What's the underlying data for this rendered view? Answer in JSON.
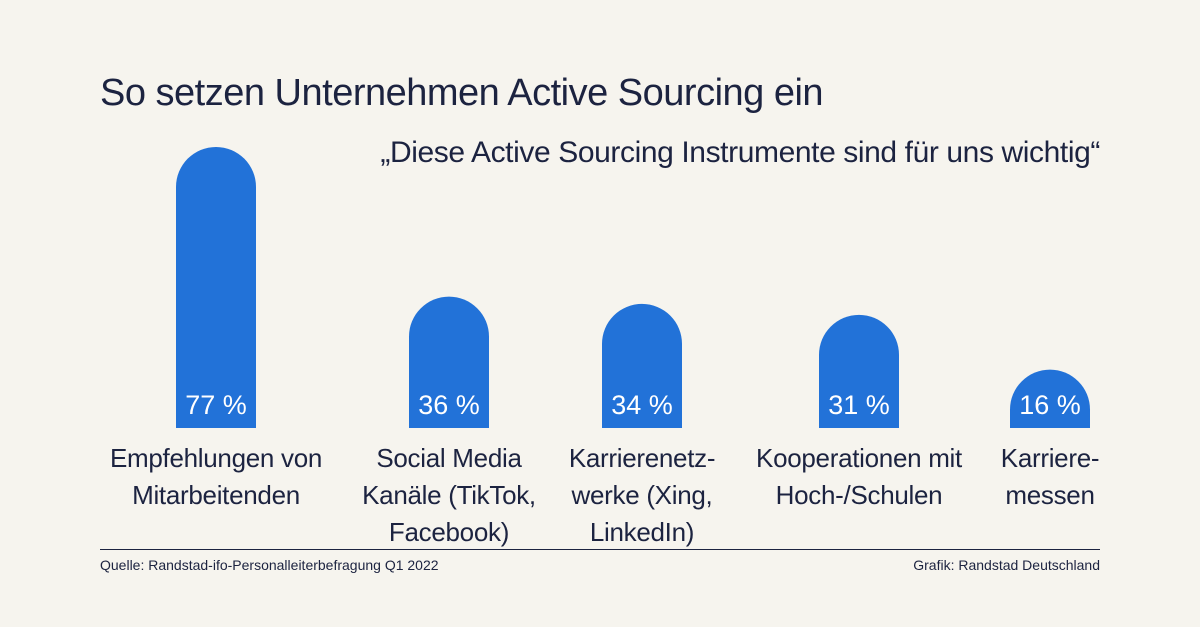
{
  "title": "So setzen Unternehmen Active Sourcing ein",
  "subtitle": "„Diese Active Sourcing Instrumente sind für uns wichtig“",
  "source": "Quelle: Randstad-ifo-Personalleiterbefragung Q1 2022",
  "credit": "Grafik: Randstad Deutschland",
  "colors": {
    "bar": "#2272d8",
    "bar_label": "#ffffff",
    "background": "#f6f4ee",
    "text": "#1c2340"
  },
  "chart_data": {
    "type": "bar",
    "title": "So setzen Unternehmen Active Sourcing ein",
    "subtitle": "„Diese Active Sourcing Instrumente sind für uns wichtig“",
    "xlabel": "",
    "ylabel": "",
    "ylim": [
      0,
      80
    ],
    "grid": false,
    "categories": [
      "Empfehlungen von Mitarbeitenden",
      "Social Media Kanäle (TikTok, Facebook)",
      "Karrierenetzwerke (Xing, LinkedIn)",
      "Kooperationen mit Hoch-/Schulen",
      "Karrieremessen"
    ],
    "category_lines": [
      [
        "Empfehlungen von",
        "Mitarbeitenden"
      ],
      [
        "Social Media",
        "Kanäle (TikTok,",
        "Facebook)"
      ],
      [
        "Karrierenetz-",
        "werke (Xing,",
        "LinkedIn)"
      ],
      [
        "Kooperationen mit",
        "Hoch-/Schulen"
      ],
      [
        "Karriere-",
        "messen"
      ]
    ],
    "values": [
      77,
      36,
      34,
      31,
      16
    ],
    "value_labels": [
      "77 %",
      "36 %",
      "34 %",
      "31 %",
      "16 %"
    ]
  }
}
